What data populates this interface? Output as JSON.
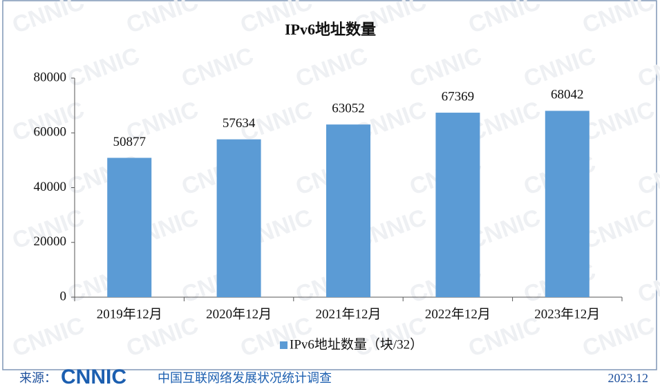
{
  "chart_data": {
    "type": "bar",
    "title": "IPv6地址数量",
    "categories": [
      "2019年12月",
      "2020年12月",
      "2021年12月",
      "2022年12月",
      "2023年12月"
    ],
    "series": [
      {
        "name": "IPv6地址数量（块/32）",
        "color": "#5b9bd5",
        "values": [
          50877,
          57634,
          63052,
          67369,
          68042
        ]
      }
    ],
    "ylim": [
      0,
      80000
    ],
    "yticks": [
      0,
      20000,
      40000,
      60000,
      80000
    ],
    "grid": false,
    "legend": "bottom",
    "watermark": "CNNIC"
  },
  "footer": {
    "source_label": "来源：",
    "logo": "CNNIC",
    "text": "中国互联网络发展状况统计调查",
    "date": "2023.12"
  }
}
